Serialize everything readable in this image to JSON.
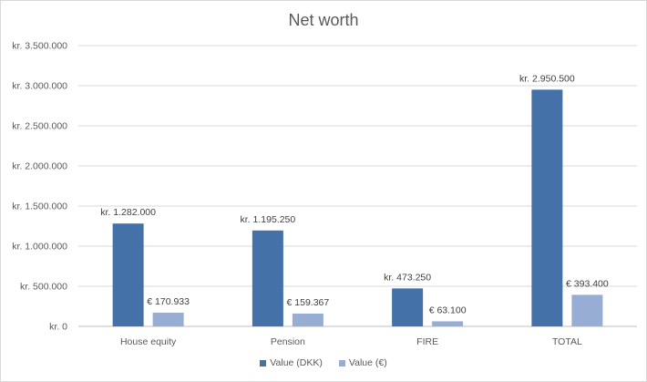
{
  "chart_data": {
    "type": "bar",
    "title": "Net worth",
    "categories": [
      "House equity",
      "Pension",
      "FIRE",
      "TOTAL"
    ],
    "series": [
      {
        "name": "Value (DKK)",
        "color": "#4472a8",
        "values": [
          1282000,
          1195250,
          473250,
          2950500
        ],
        "labels": [
          "kr. 1.282.000",
          "kr. 1.195.250",
          "kr. 473.250",
          "kr. 2.950.500"
        ]
      },
      {
        "name": "Value (€)",
        "color": "#98add4",
        "values": [
          170933,
          159367,
          63100,
          393400
        ],
        "labels": [
          "€ 170.933",
          "€ 159.367",
          "€ 63.100",
          "€ 393.400"
        ]
      }
    ],
    "ylim": [
      0,
      3500000
    ],
    "yticks": [
      0,
      500000,
      1000000,
      1500000,
      2000000,
      2500000,
      3000000,
      3500000
    ],
    "ytick_labels": [
      "kr. 0",
      "kr. 500.000",
      "kr. 1.000.000",
      "kr. 1.500.000",
      "kr. 2.000.000",
      "kr. 2.500.000",
      "kr. 3.000.000",
      "kr. 3.500.000"
    ],
    "grid": true,
    "legend_position": "bottom"
  }
}
